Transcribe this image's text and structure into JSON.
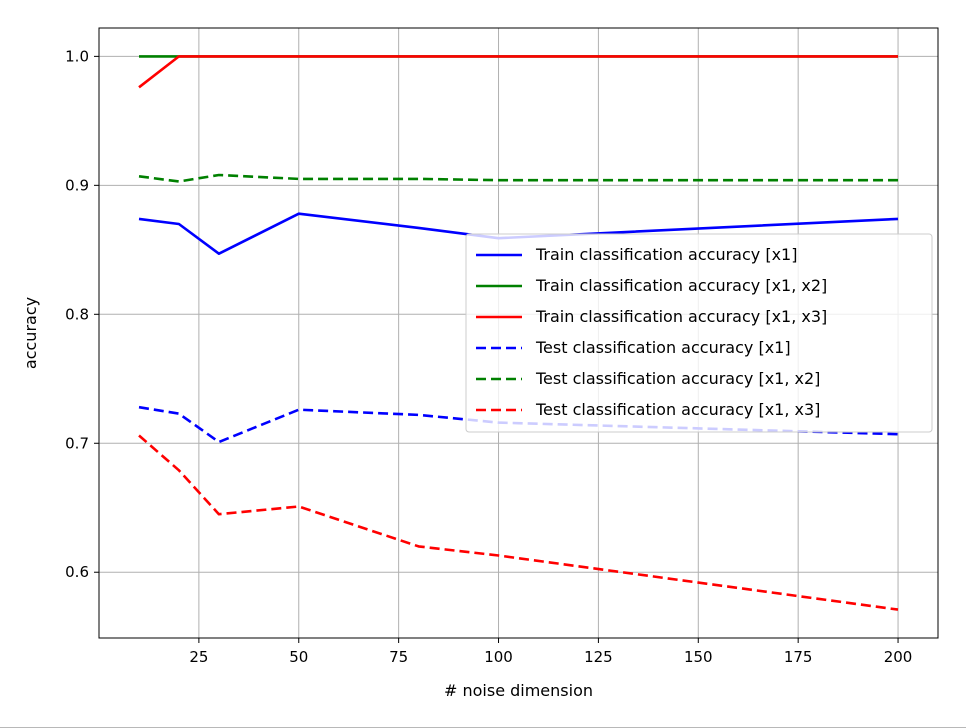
{
  "chart_data": {
    "type": "line",
    "title": "",
    "xlabel": "# noise dimension",
    "ylabel": "accuracy",
    "xlim": [
      0,
      210
    ],
    "ylim": [
      0.549,
      1.022
    ],
    "xticks": [
      25,
      50,
      75,
      100,
      125,
      150,
      175,
      200
    ],
    "yticks": [
      0.6,
      0.7,
      0.8,
      0.9,
      1.0
    ],
    "xtick_labels": [
      "25",
      "50",
      "75",
      "100",
      "125",
      "150",
      "175",
      "200"
    ],
    "ytick_labels": [
      "0.6",
      "0.7",
      "0.8",
      "0.9",
      "1.0"
    ],
    "grid": true,
    "legend_position": "center-right",
    "x": [
      10,
      20,
      30,
      50,
      80,
      100,
      200
    ],
    "series": [
      {
        "name": "Train classification accuracy [x1]",
        "color": "#0000ff",
        "style": "solid",
        "values": [
          0.874,
          0.87,
          0.847,
          0.878,
          0.867,
          0.859,
          0.874
        ]
      },
      {
        "name": "Train classification accuracy [x1, x2]",
        "color": "#008000",
        "style": "solid",
        "values": [
          1.0,
          1.0,
          1.0,
          1.0,
          1.0,
          1.0,
          1.0
        ]
      },
      {
        "name": "Train classification accuracy [x1, x3]",
        "color": "#ff0000",
        "style": "solid",
        "values": [
          0.976,
          1.0,
          1.0,
          1.0,
          1.0,
          1.0,
          1.0
        ]
      },
      {
        "name": "Test classification accuracy [x1]",
        "color": "#0000ff",
        "style": "dashed",
        "values": [
          0.728,
          0.723,
          0.701,
          0.726,
          0.722,
          0.716,
          0.707
        ]
      },
      {
        "name": "Test classification accuracy [x1, x2]",
        "color": "#008000",
        "style": "dashed",
        "values": [
          0.907,
          0.903,
          0.908,
          0.905,
          0.905,
          0.904,
          0.904
        ]
      },
      {
        "name": "Test classification accuracy [x1, x3]",
        "color": "#ff0000",
        "style": "dashed",
        "values": [
          0.706,
          0.679,
          0.645,
          0.651,
          0.62,
          0.613,
          0.571
        ]
      }
    ]
  }
}
